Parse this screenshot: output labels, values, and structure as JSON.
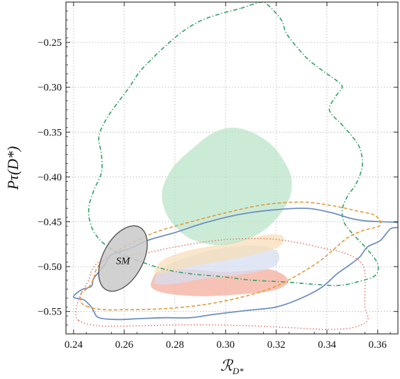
{
  "chart_data": {
    "type": "contour",
    "xlabel": "ℛ",
    "xlabel_sub": "D*",
    "ylabel": "Pτ(D*)",
    "xlim": [
      0.237,
      0.368
    ],
    "ylim": [
      -0.575,
      -0.205
    ],
    "xticks": [
      {
        "value": 0.24,
        "label": "0.24"
      },
      {
        "value": 0.26,
        "label": "0.26"
      },
      {
        "value": 0.28,
        "label": "0.28"
      },
      {
        "value": 0.3,
        "label": "0.30"
      },
      {
        "value": 0.32,
        "label": "0.32"
      },
      {
        "value": 0.34,
        "label": "0.34"
      },
      {
        "value": 0.36,
        "label": "0.36"
      }
    ],
    "yticks": [
      {
        "value": -0.25,
        "label": "−0.25"
      },
      {
        "value": -0.3,
        "label": "−0.30"
      },
      {
        "value": -0.35,
        "label": "−0.35"
      },
      {
        "value": -0.4,
        "label": "−0.40"
      },
      {
        "value": -0.45,
        "label": "−0.45"
      },
      {
        "value": -0.5,
        "label": "−0.50"
      },
      {
        "value": -0.55,
        "label": "−0.55"
      }
    ],
    "grid": true,
    "filled_regions": [
      {
        "color": "#f3a897",
        "opacity": 0.7,
        "points": [
          [
            0.271,
            -0.515
          ],
          [
            0.274,
            -0.505
          ],
          [
            0.285,
            -0.503
          ],
          [
            0.3,
            -0.506
          ],
          [
            0.315,
            -0.503
          ],
          [
            0.32,
            -0.505
          ],
          [
            0.324,
            -0.512
          ],
          [
            0.324,
            -0.52
          ],
          [
            0.318,
            -0.527
          ],
          [
            0.305,
            -0.531
          ],
          [
            0.29,
            -0.533
          ],
          [
            0.277,
            -0.53
          ],
          [
            0.271,
            -0.524
          ]
        ]
      },
      {
        "color": "#d5ddf0",
        "opacity": 0.75,
        "points": [
          [
            0.272,
            -0.518
          ],
          [
            0.276,
            -0.5
          ],
          [
            0.29,
            -0.485
          ],
          [
            0.305,
            -0.477
          ],
          [
            0.316,
            -0.478
          ],
          [
            0.321,
            -0.486
          ],
          [
            0.319,
            -0.5
          ],
          [
            0.308,
            -0.508
          ],
          [
            0.292,
            -0.513
          ],
          [
            0.28,
            -0.519
          ]
        ]
      },
      {
        "color": "#f8ddb5",
        "opacity": 0.7,
        "points": [
          [
            0.272,
            -0.507
          ],
          [
            0.275,
            -0.493
          ],
          [
            0.284,
            -0.483
          ],
          [
            0.296,
            -0.476
          ],
          [
            0.308,
            -0.469
          ],
          [
            0.318,
            -0.464
          ],
          [
            0.323,
            -0.467
          ],
          [
            0.321,
            -0.478
          ],
          [
            0.312,
            -0.486
          ],
          [
            0.3,
            -0.493
          ],
          [
            0.288,
            -0.499
          ],
          [
            0.278,
            -0.506
          ]
        ]
      },
      {
        "color": "#b6e3c6",
        "opacity": 0.7,
        "points": [
          [
            0.275,
            -0.415
          ],
          [
            0.279,
            -0.39
          ],
          [
            0.287,
            -0.368
          ],
          [
            0.295,
            -0.351
          ],
          [
            0.303,
            -0.345
          ],
          [
            0.311,
            -0.351
          ],
          [
            0.318,
            -0.364
          ],
          [
            0.323,
            -0.382
          ],
          [
            0.326,
            -0.402
          ],
          [
            0.325,
            -0.425
          ],
          [
            0.319,
            -0.45
          ],
          [
            0.31,
            -0.468
          ],
          [
            0.298,
            -0.476
          ],
          [
            0.287,
            -0.47
          ],
          [
            0.28,
            -0.455
          ],
          [
            0.276,
            -0.437
          ]
        ]
      }
    ],
    "contours": [
      {
        "color": "#3aa56a",
        "style": "dashdot",
        "width": 1.7,
        "points": [
          [
            0.306,
            -0.212
          ],
          [
            0.314,
            -0.205
          ],
          [
            0.317,
            -0.209
          ],
          [
            0.322,
            -0.225
          ],
          [
            0.324,
            -0.24
          ],
          [
            0.329,
            -0.258
          ],
          [
            0.333,
            -0.27
          ],
          [
            0.339,
            -0.283
          ],
          [
            0.344,
            -0.293
          ],
          [
            0.346,
            -0.3
          ],
          [
            0.343,
            -0.312
          ],
          [
            0.341,
            -0.326
          ],
          [
            0.346,
            -0.342
          ],
          [
            0.35,
            -0.355
          ],
          [
            0.353,
            -0.368
          ],
          [
            0.354,
            -0.385
          ],
          [
            0.353,
            -0.398
          ],
          [
            0.351,
            -0.41
          ],
          [
            0.348,
            -0.422
          ],
          [
            0.346,
            -0.437
          ],
          [
            0.347,
            -0.452
          ],
          [
            0.351,
            -0.466
          ],
          [
            0.356,
            -0.481
          ],
          [
            0.36,
            -0.497
          ],
          [
            0.359,
            -0.51
          ],
          [
            0.352,
            -0.517
          ],
          [
            0.345,
            -0.521
          ],
          [
            0.336,
            -0.52
          ],
          [
            0.323,
            -0.517
          ],
          [
            0.31,
            -0.515
          ],
          [
            0.298,
            -0.511
          ],
          [
            0.286,
            -0.508
          ],
          [
            0.276,
            -0.503
          ],
          [
            0.268,
            -0.496
          ],
          [
            0.258,
            -0.485
          ],
          [
            0.251,
            -0.472
          ],
          [
            0.247,
            -0.455
          ],
          [
            0.246,
            -0.435
          ],
          [
            0.248,
            -0.415
          ],
          [
            0.251,
            -0.395
          ],
          [
            0.251,
            -0.375
          ],
          [
            0.25,
            -0.355
          ],
          [
            0.253,
            -0.335
          ],
          [
            0.258,
            -0.315
          ],
          [
            0.262,
            -0.3
          ],
          [
            0.266,
            -0.283
          ],
          [
            0.271,
            -0.268
          ],
          [
            0.277,
            -0.252
          ],
          [
            0.283,
            -0.238
          ],
          [
            0.29,
            -0.226
          ],
          [
            0.298,
            -0.218
          ]
        ]
      },
      {
        "color": "#6f8fbf",
        "style": "solid",
        "width": 1.8,
        "points": [
          [
            0.247,
            -0.545
          ],
          [
            0.244,
            -0.537
          ],
          [
            0.24,
            -0.534
          ],
          [
            0.243,
            -0.526
          ],
          [
            0.247,
            -0.522
          ],
          [
            0.248,
            -0.513
          ],
          [
            0.252,
            -0.499
          ],
          [
            0.255,
            -0.487
          ],
          [
            0.262,
            -0.48
          ],
          [
            0.27,
            -0.47
          ],
          [
            0.28,
            -0.462
          ],
          [
            0.292,
            -0.451
          ],
          [
            0.305,
            -0.442
          ],
          [
            0.318,
            -0.437
          ],
          [
            0.332,
            -0.435
          ],
          [
            0.342,
            -0.44
          ],
          [
            0.349,
            -0.446
          ],
          [
            0.355,
            -0.449
          ],
          [
            0.362,
            -0.45
          ],
          [
            0.368,
            -0.451
          ],
          [
            0.368,
            -0.456
          ],
          [
            0.365,
            -0.458
          ],
          [
            0.361,
            -0.471
          ],
          [
            0.356,
            -0.478
          ],
          [
            0.353,
            -0.489
          ],
          [
            0.349,
            -0.498
          ],
          [
            0.344,
            -0.508
          ],
          [
            0.338,
            -0.523
          ],
          [
            0.33,
            -0.535
          ],
          [
            0.32,
            -0.545
          ],
          [
            0.308,
            -0.549
          ],
          [
            0.296,
            -0.553
          ],
          [
            0.286,
            -0.557
          ],
          [
            0.276,
            -0.557
          ],
          [
            0.266,
            -0.558
          ],
          [
            0.257,
            -0.559
          ],
          [
            0.25,
            -0.557
          ],
          [
            0.248,
            -0.55
          ]
        ]
      },
      {
        "color": "#e09a35",
        "style": "dashed",
        "width": 1.6,
        "points": [
          [
            0.246,
            -0.545
          ],
          [
            0.243,
            -0.54
          ],
          [
            0.243,
            -0.53
          ],
          [
            0.246,
            -0.523
          ],
          [
            0.248,
            -0.513
          ],
          [
            0.249,
            -0.503
          ],
          [
            0.253,
            -0.49
          ],
          [
            0.262,
            -0.475
          ],
          [
            0.272,
            -0.462
          ],
          [
            0.285,
            -0.451
          ],
          [
            0.3,
            -0.44
          ],
          [
            0.315,
            -0.431
          ],
          [
            0.33,
            -0.428
          ],
          [
            0.342,
            -0.432
          ],
          [
            0.352,
            -0.438
          ],
          [
            0.359,
            -0.443
          ],
          [
            0.361,
            -0.454
          ],
          [
            0.354,
            -0.46
          ],
          [
            0.348,
            -0.468
          ],
          [
            0.343,
            -0.48
          ],
          [
            0.337,
            -0.494
          ],
          [
            0.328,
            -0.51
          ],
          [
            0.318,
            -0.524
          ],
          [
            0.305,
            -0.535
          ],
          [
            0.29,
            -0.543
          ],
          [
            0.275,
            -0.547
          ],
          [
            0.262,
            -0.548
          ],
          [
            0.252,
            -0.548
          ]
        ]
      },
      {
        "color": "#e76f62",
        "style": "dotted",
        "width": 1.6,
        "points": [
          [
            0.242,
            -0.56
          ],
          [
            0.241,
            -0.548
          ],
          [
            0.243,
            -0.53
          ],
          [
            0.246,
            -0.515
          ],
          [
            0.247,
            -0.505
          ],
          [
            0.25,
            -0.495
          ],
          [
            0.257,
            -0.49
          ],
          [
            0.268,
            -0.485
          ],
          [
            0.28,
            -0.478
          ],
          [
            0.293,
            -0.472
          ],
          [
            0.305,
            -0.469
          ],
          [
            0.317,
            -0.469
          ],
          [
            0.328,
            -0.473
          ],
          [
            0.338,
            -0.479
          ],
          [
            0.347,
            -0.485
          ],
          [
            0.353,
            -0.494
          ],
          [
            0.355,
            -0.507
          ],
          [
            0.355,
            -0.525
          ],
          [
            0.355,
            -0.545
          ],
          [
            0.356,
            -0.56
          ],
          [
            0.35,
            -0.568
          ],
          [
            0.34,
            -0.57
          ],
          [
            0.325,
            -0.568
          ],
          [
            0.31,
            -0.566
          ],
          [
            0.295,
            -0.565
          ],
          [
            0.28,
            -0.565
          ],
          [
            0.265,
            -0.566
          ],
          [
            0.25,
            -0.566
          ]
        ]
      }
    ],
    "sm_ellipse": {
      "cx": 0.2595,
      "cy": -0.491,
      "rx": 0.014,
      "ry": 0.036,
      "angle": -62,
      "fill": "#c9c9c9",
      "stroke": "#555555"
    },
    "annotations": [
      {
        "text": "SM",
        "x": 0.2595,
        "y": -0.4935
      }
    ]
  }
}
